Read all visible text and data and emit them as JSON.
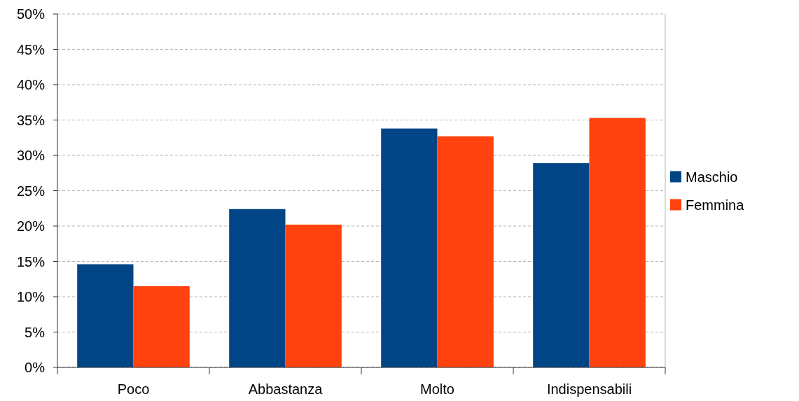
{
  "chart_data": {
    "type": "bar",
    "categories": [
      "Poco",
      "Abbastanza",
      "Molto",
      "Indispensabili"
    ],
    "series": [
      {
        "name": "Maschio",
        "color": "#004586",
        "values": [
          14.6,
          22.4,
          33.8,
          28.9
        ]
      },
      {
        "name": "Femmina",
        "color": "#ff420e",
        "values": [
          11.5,
          20.2,
          32.7,
          35.3
        ]
      }
    ],
    "ylim": [
      0,
      50
    ],
    "yticks": [
      {
        "value": 0,
        "label": "0%"
      },
      {
        "value": 5,
        "label": "5%"
      },
      {
        "value": 10,
        "label": "10%"
      },
      {
        "value": 15,
        "label": "15%"
      },
      {
        "value": 20,
        "label": "20%"
      },
      {
        "value": 25,
        "label": "25%"
      },
      {
        "value": 30,
        "label": "30%"
      },
      {
        "value": 35,
        "label": "35%"
      },
      {
        "value": 40,
        "label": "40%"
      },
      {
        "value": 45,
        "label": "45%"
      },
      {
        "value": 50,
        "label": "50%"
      }
    ],
    "grid": "y",
    "legend": "right"
  }
}
